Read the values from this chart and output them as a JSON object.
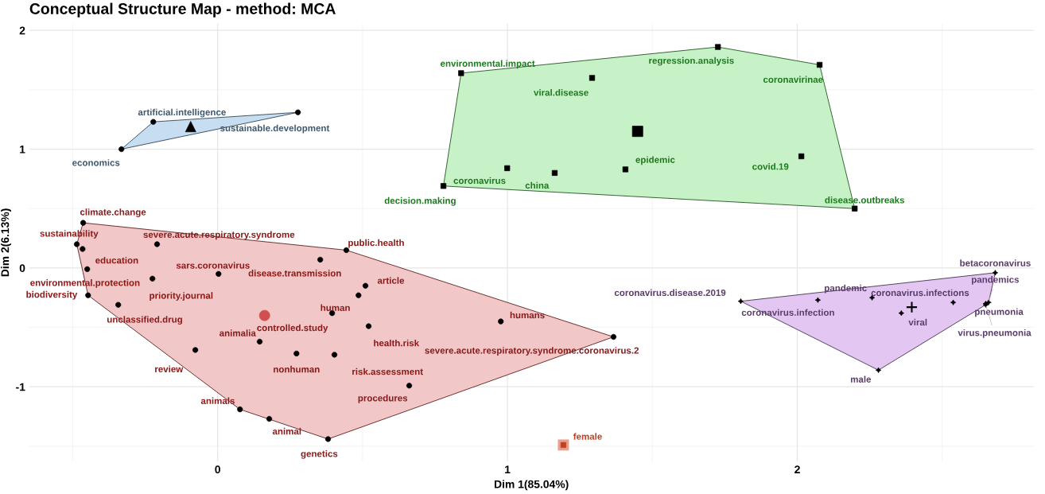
{
  "chart_data": {
    "type": "scatter",
    "title": "Conceptual Structure Map - method: MCA",
    "xlabel": "Dim 1(85.04%)",
    "ylabel": "Dim 2(6.13%)",
    "xlim": [
      -0.65,
      2.815
    ],
    "ylim": [
      -1.628,
      2.056
    ],
    "xticks": [
      0,
      1,
      2
    ],
    "yticks": [
      -1,
      0,
      1,
      2
    ],
    "grid": true,
    "series": [
      {
        "color": "#8b1a1a",
        "marker": "circle",
        "colors": [
          "#000000",
          "#000000",
          "#000000",
          "#000000",
          "#000000",
          "#000000",
          "#000000",
          "#000000",
          "#000000",
          "#000000",
          "#000000",
          "#000000",
          "#000000",
          "#000000",
          "#000000",
          "#000000",
          "#000000",
          "#000000",
          "#000000",
          "#000000",
          "#000000",
          "#000000",
          "#000000",
          "#000000",
          "#000000"
        ],
        "x": [
          -0.464,
          -0.486,
          -0.466,
          -0.45,
          -0.447,
          -0.343,
          -0.209,
          -0.225,
          0.003,
          0.354,
          0.444,
          0.51,
          0.486,
          0.395,
          0.521,
          0.977,
          1.366,
          0.145,
          -0.077,
          0.272,
          0.403,
          0.661,
          0.077,
          0.178,
          0.381
        ],
        "values": [
          0.38,
          0.2,
          0.16,
          -0.01,
          -0.23,
          -0.31,
          0.2,
          -0.09,
          -0.05,
          0.07,
          0.15,
          -0.15,
          -0.23,
          -0.38,
          -0.49,
          -0.45,
          -0.58,
          -0.62,
          -0.69,
          -0.72,
          -0.73,
          -0.99,
          -1.19,
          -1.27,
          -1.44
        ],
        "value_labels": [
          "climate.change",
          "sustainability",
          "education",
          "environmental.protection",
          "biodiversity",
          "unclassified.drug",
          "severe.acute.respiratory.syndrome",
          "priority.journal",
          "sars.coronavirus",
          "disease.transmission",
          "public.health",
          "article",
          "human",
          "controlled.study",
          "health.risk",
          "humans",
          "severe.acute.respiratory.syndrome.coronavirus.2",
          "animalia",
          "review",
          "nonhuman",
          "risk.assessment",
          "procedures",
          "animals",
          "animal",
          "genetics"
        ]
      },
      {
        "color": "#3d5a73",
        "marker": "circle",
        "colors": [
          "#000000",
          "#000000",
          "#000000"
        ],
        "x": [
          -0.332,
          -0.222,
          0.277
        ],
        "values": [
          1.0,
          1.23,
          1.31
        ],
        "value_labels": [
          "economics",
          "artificial.intelligence",
          "sustainable.development"
        ]
      },
      {
        "color": "#1e7a1e",
        "marker": "square",
        "colors": [
          "#000000",
          "#000000",
          "#000000",
          "#000000",
          "#000000",
          "#000000",
          "#000000",
          "#000000",
          "#000000",
          "#000000"
        ],
        "x": [
          0.84,
          1.292,
          1.726,
          2.077,
          2.014,
          2.198,
          1.407,
          1.163,
          0.999,
          0.779
        ],
        "values": [
          1.64,
          1.6,
          1.86,
          1.71,
          0.94,
          0.5,
          0.83,
          0.8,
          0.84,
          0.69
        ],
        "value_labels": [
          "environmental.impact",
          "viral.disease",
          "regression.analysis",
          "coronavirinae",
          "covid.19",
          "disease.outbreaks",
          "epidemic",
          "china",
          "coronavirus",
          "decision.making"
        ]
      },
      {
        "color": "#5a3d6a",
        "marker": "star",
        "colors": [
          "#000000",
          "#000000",
          "#000000",
          "#000000",
          "#000000",
          "#000000",
          "#000000",
          "#000000",
          "#000000",
          "#000000"
        ],
        "x": [
          1.805,
          2.071,
          2.258,
          2.359,
          2.538,
          2.65,
          2.66,
          2.65,
          2.683,
          2.28
        ],
        "values": [
          -0.28,
          -0.27,
          -0.25,
          -0.38,
          -0.29,
          -0.3,
          -0.29,
          -0.31,
          -0.04,
          -0.86
        ],
        "value_labels": [
          "coronavirus.disease.2019",
          "coronavirus.infection",
          "pandemic",
          "viral",
          "coronavirus.infections",
          "pneumonia",
          "pandemics",
          "virus.pneumonia",
          "betacoronavirus",
          "male"
        ]
      },
      {
        "color": "#c0401f",
        "marker": "square",
        "x": [
          1.193
        ],
        "values": [
          -1.49
        ],
        "value_labels": [
          "female"
        ]
      },
      {
        "color": "#d05050",
        "marker": "circle",
        "x": [
          0.162
        ],
        "values": [
          -0.4
        ]
      },
      {
        "color": "#000000",
        "marker": "triangle",
        "x": [
          -0.093
        ],
        "values": [
          1.19
        ]
      },
      {
        "color": "#000000",
        "marker": "square",
        "x": [
          1.449
        ],
        "values": [
          1.15
        ]
      },
      {
        "color": "#000000",
        "marker": "cross",
        "x": [
          2.395
        ],
        "values": [
          -0.33
        ]
      },
      {
        "color": "#e8a090",
        "marker": "square",
        "x": [
          1.193
        ],
        "values": [
          -1.49
        ]
      }
    ]
  }
}
